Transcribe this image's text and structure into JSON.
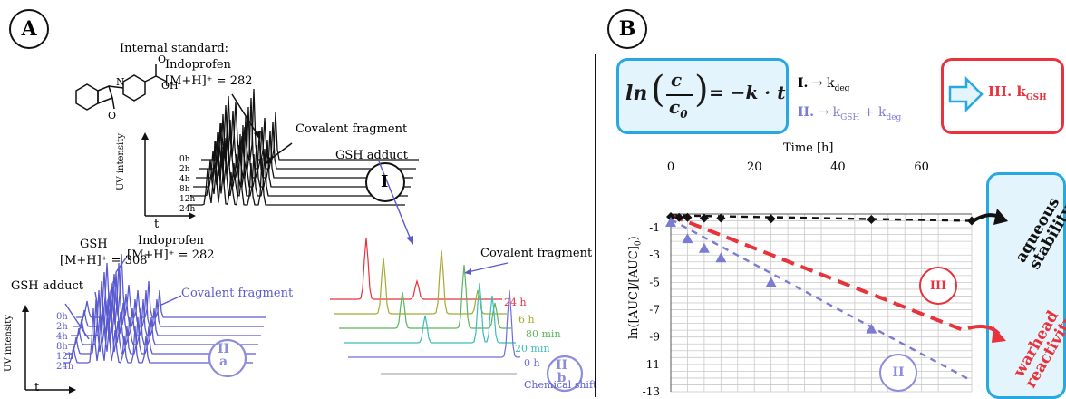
{
  "panel_a": {
    "letter": "A",
    "top": {
      "internal_standard": "Internal standard:",
      "is_name": "Indoprofen",
      "is_mass": "[M+H]⁺ = 282",
      "covalent_fragment": "Covalent fragment",
      "y_axis": "UV intensity",
      "x_axis": "t",
      "times": [
        "0h",
        "2h",
        "4h",
        "8h",
        "12h",
        "24h"
      ],
      "roman": "I"
    },
    "bottom": {
      "gsh": "GSH",
      "gsh_mass": "[M+H]⁺ = 308",
      "indoprofen": "Indoprofen",
      "indoprofen_mass": "[M+H]⁺ = 282",
      "gsh_adduct": "GSH adduct",
      "covalent_fragment": "Covalent fragment",
      "y_axis": "UV intensity",
      "x_axis": "t",
      "times": [
        "0h",
        "2h",
        "4h",
        "8h",
        "12h",
        "24h"
      ],
      "roman": "II",
      "sub": "a"
    },
    "nmr": {
      "gsh_adduct": "GSH adduct",
      "covalent_fragment": "Covalent fragment",
      "times": [
        "24 h",
        "6 h",
        "80 min",
        "20 min",
        "0 h"
      ],
      "colors": [
        "#e8323c",
        "#a8a830",
        "#5bb55b",
        "#3cbcb8",
        "#6e6ee0"
      ],
      "roman": "II",
      "sub": "b",
      "x_axis": "Chemical shift"
    }
  },
  "panel_b": {
    "letter": "B",
    "equation": {
      "ln": "ln",
      "c": "c",
      "c0": "c",
      "c0_sub": "0",
      "rhs": "= −k · t"
    },
    "rate_I": {
      "roman": "I.",
      "arrow": "→",
      "k": "k",
      "k_sub": "deg"
    },
    "rate_II": {
      "roman": "II.",
      "arrow": "→",
      "k1": "k",
      "k1_sub": "GSH",
      "plus": "+",
      "k2": "k",
      "k2_sub": "deg"
    },
    "result": {
      "roman": "III.",
      "k": "k",
      "k_sub": "GSH"
    },
    "side_labels": {
      "aqueous": [
        "aqueous",
        "stability"
      ],
      "warhead": [
        "warhead",
        "reactivity"
      ]
    },
    "y_label_parts": {
      "ln": "ln(",
      "num": "[AUC]",
      "den": "[AUC]",
      "den_sub": "0",
      "close": ")"
    }
  },
  "chart_data": {
    "type": "scatter",
    "title": "",
    "xlabel": "Time [h]",
    "ylabel": "ln([AUC]/[AUC]0)",
    "xlim": [
      0,
      72
    ],
    "ylim": [
      -13,
      0
    ],
    "xticks": [
      0,
      20,
      40,
      60
    ],
    "yticks": [
      -1,
      -3,
      -5,
      -7,
      -9,
      -11,
      -13
    ],
    "grid": true,
    "series": [
      {
        "name": "I",
        "marker": "diamond",
        "color": "#111111",
        "x": [
          0,
          2,
          4,
          8,
          12,
          24,
          48,
          72
        ],
        "y": [
          -0.2,
          -0.25,
          -0.25,
          -0.3,
          -0.3,
          -0.35,
          -0.4,
          -0.5
        ],
        "fit": {
          "x": [
            0,
            72
          ],
          "y": [
            -0.1,
            -0.5
          ],
          "color": "#111111"
        }
      },
      {
        "name": "II",
        "marker": "triangle",
        "color": "#7b7bd1",
        "x": [
          0,
          4,
          8,
          12,
          24,
          48
        ],
        "y": [
          -0.6,
          -1.8,
          -2.5,
          -3.2,
          -5.0,
          -8.4
        ],
        "fit": {
          "x": [
            0,
            72
          ],
          "y": [
            -0.4,
            -12.2
          ],
          "color": "#7b7bd1"
        }
      },
      {
        "name": "III",
        "marker": "none",
        "color": "#e8323c",
        "x": [],
        "y": [],
        "fit": {
          "x": [
            0,
            70
          ],
          "y": [
            -0.1,
            -8.5
          ],
          "color": "#e8323c"
        }
      }
    ],
    "annotations": [
      "III",
      "II"
    ]
  }
}
